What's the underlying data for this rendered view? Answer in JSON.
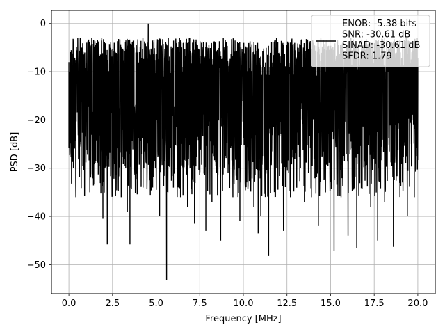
{
  "chart_data": {
    "type": "line",
    "title": "",
    "xlabel": "Frequency [MHz]",
    "ylabel": "PSD [dB]",
    "xlim": [
      -1.0,
      21.0
    ],
    "ylim": [
      -56.0,
      2.7
    ],
    "xticks": [
      0.0,
      2.5,
      5.0,
      7.5,
      10.0,
      12.5,
      15.0,
      17.5,
      20.0
    ],
    "xtick_labels": [
      "0.0",
      "2.5",
      "5.0",
      "7.5",
      "10.0",
      "12.5",
      "15.0",
      "17.5",
      "20.0"
    ],
    "yticks": [
      0,
      -10,
      -20,
      -30,
      -40,
      -50
    ],
    "ytick_labels": [
      "0",
      "−10",
      "−20",
      "−30",
      "−40",
      "−50"
    ],
    "grid": true,
    "legend_position": "top-right",
    "legend": {
      "lines": [
        "ENOB: -5.38 bits",
        "SNR: -30.61 dB",
        "SINAD: -30.61 dB",
        "SFDR: 1.79"
      ]
    },
    "series": [
      {
        "color": "#000000",
        "x_range": [
          0.0,
          20.0
        ],
        "y_envelope": {
          "upper_typical": -3.0,
          "lower_typical": -36.0,
          "max": 0.0,
          "min": -53.2
        },
        "x": [
          0.0,
          0.4,
          0.8,
          1.2,
          1.6,
          1.95,
          2.2,
          2.6,
          3.0,
          3.35,
          3.5,
          3.9,
          4.3,
          4.55,
          4.8,
          5.2,
          5.6,
          6.0,
          6.4,
          6.8,
          7.2,
          7.6,
          7.85,
          8.2,
          8.7,
          9.0,
          9.4,
          9.8,
          10.2,
          10.6,
          10.85,
          11.0,
          11.45,
          11.9,
          12.3,
          12.7,
          13.1,
          13.5,
          13.9,
          14.3,
          14.7,
          15.2,
          15.6,
          16.0,
          16.5,
          16.9,
          17.3,
          17.7,
          18.1,
          18.6,
          19.0,
          19.4,
          19.8,
          20.0
        ],
        "y": [
          -8.0,
          -36.0,
          -6.0,
          -35.0,
          -5.0,
          -40.5,
          -45.8,
          -4.0,
          -36.0,
          -39.0,
          -45.8,
          -6.0,
          -30.0,
          0.0,
          -34.0,
          -40.0,
          -53.2,
          -6.0,
          -36.0,
          -38.0,
          -41.5,
          -4.0,
          -43.0,
          -37.0,
          -45.0,
          -4.0,
          -36.0,
          -41.0,
          -5.0,
          -38.0,
          -43.5,
          -40.0,
          -48.2,
          -3.0,
          -43.0,
          -36.0,
          -5.0,
          -37.0,
          -36.0,
          -42.0,
          -5.0,
          -47.2,
          -36.0,
          -44.0,
          -46.5,
          -5.0,
          -38.0,
          -45.0,
          -37.0,
          -46.3,
          -6.0,
          -40.0,
          -36.0,
          -12.0
        ]
      }
    ]
  }
}
